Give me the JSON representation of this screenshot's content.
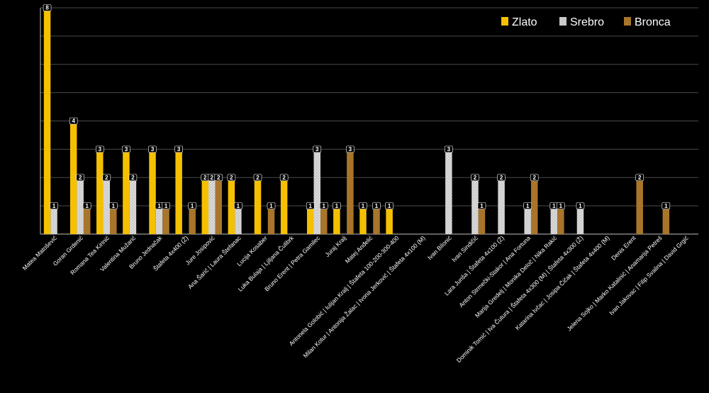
{
  "chart_data": {
    "type": "bar",
    "title": "",
    "xlabel": "",
    "ylabel": "",
    "ylim": [
      0,
      8
    ],
    "grid": true,
    "legend_position": "top-right",
    "categories": [
      "Matea Matošević",
      "Goran Grdenić",
      "Romana Tea Kirinić",
      "Valentina Mužarić",
      "Bruno Jednačak",
      "Štafeta 4x400 (Ž)",
      "Jure Josipović",
      "Ana Šarić | Laura Štefanac",
      "Lucija Kosaber",
      "Luka Bulaja | Ljiljana Čulibrk",
      "Bruno Erent | Petra Gamilec",
      "Juraj Kralj",
      "Matej Anđelić",
      "Antonela Golobić | Iulijan Kralj | Štafeta 100-200-300-400",
      "Milan Kotur | Antonija Žalac | Ivona Jerković | Štafeta 4x100 (M)",
      "Ivan Bilonić",
      "Ivan Sindičić",
      "Lara Juriša | Štafeta 4x100 (Ž)",
      "Anton Strmečki-Stakor | Ana Fortuna",
      "Marija Gredelj | Monika Deloč | Nika Rakić",
      "Dominik Tomić | Iva Čutura | Štafeta 4x300 (M) | Štafeta 4x300 (Ž)",
      "Katarina Ivčac | Josipa Čičak | Štafeta 4x400 (M)",
      "Denis Erent",
      "Jelena Sojko | Marko Katalinić | Anamarija Petreš",
      "Ivan Jakovac | Filip Svalina | David Grgić"
    ],
    "series": [
      {
        "name": "Zlato",
        "color": "#f5c000",
        "values": [
          8,
          4,
          3,
          3,
          3,
          3,
          2,
          2,
          2,
          2,
          1,
          1,
          1,
          1,
          0,
          0,
          0,
          0,
          0,
          0,
          0,
          0,
          0,
          0,
          0
        ]
      },
      {
        "name": "Srebro",
        "color": "#c8c8c8",
        "values": [
          1,
          2,
          2,
          2,
          1,
          0,
          2,
          1,
          0,
          0,
          3,
          0,
          0,
          0,
          0,
          3,
          2,
          2,
          1,
          1,
          1,
          0,
          0,
          0,
          0
        ]
      },
      {
        "name": "Bronca",
        "color": "#a8752a",
        "values": [
          0,
          1,
          1,
          0,
          1,
          1,
          2,
          0,
          1,
          0,
          1,
          3,
          1,
          0,
          0,
          0,
          1,
          0,
          2,
          1,
          0,
          0,
          2,
          1,
          0
        ]
      }
    ]
  }
}
